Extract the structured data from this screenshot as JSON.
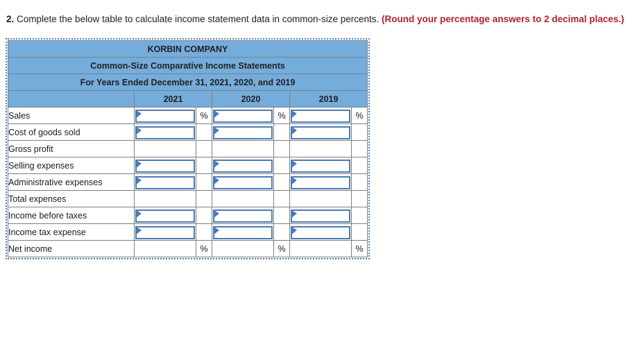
{
  "question": {
    "number": "2.",
    "text": " Complete the below table to calculate income statement data in common-size percents. ",
    "note": "(Round your percentage answers to 2 decimal places.)"
  },
  "colors": {
    "header_blue": "#74ACDC",
    "input_border_blue": "#4A7CB5",
    "grid_gray": "#7F7F7F",
    "underline_black": "#000000",
    "dotted_outline_blue": "#4E7FBF",
    "note_red": "#B02132"
  },
  "table": {
    "title": "KORBIN COMPANY",
    "subtitle": "Common-Size Comparative Income Statements",
    "period": "For Years Ended December 31, 2021, 2020, and 2019",
    "years": [
      "2021",
      "2020",
      "2019"
    ],
    "percent_symbol": "%",
    "input_value": "",
    "rows": [
      {
        "label": "Sales",
        "has_input": true,
        "show_percent": true,
        "underline": false,
        "bottom_rule": false
      },
      {
        "label": "Cost of goods sold",
        "has_input": true,
        "show_percent": false,
        "underline": true,
        "bottom_rule": false
      },
      {
        "label": "Gross profit",
        "has_input": false,
        "show_percent": false,
        "underline": false,
        "bottom_rule": false
      },
      {
        "label": "Selling expenses",
        "has_input": true,
        "show_percent": false,
        "underline": false,
        "bottom_rule": false
      },
      {
        "label": "Administrative expenses",
        "has_input": true,
        "show_percent": false,
        "underline": true,
        "bottom_rule": false
      },
      {
        "label": "Total expenses",
        "has_input": false,
        "show_percent": false,
        "underline": true,
        "bottom_rule": false
      },
      {
        "label": "Income before taxes",
        "has_input": true,
        "show_percent": false,
        "underline": false,
        "bottom_rule": false
      },
      {
        "label": "Income tax expense",
        "has_input": true,
        "show_percent": false,
        "underline": true,
        "bottom_rule": false
      },
      {
        "label": "Net income",
        "has_input": false,
        "show_percent": true,
        "underline": false,
        "bottom_rule": true
      }
    ]
  }
}
